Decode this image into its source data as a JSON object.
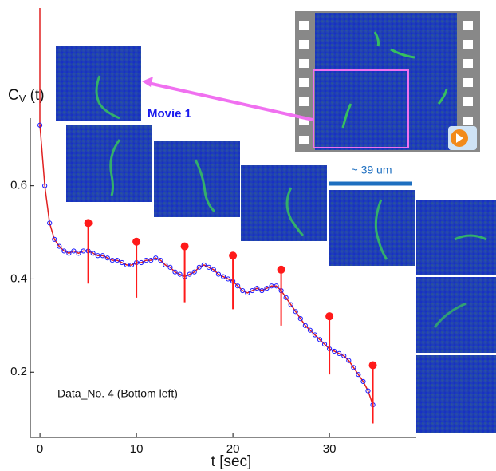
{
  "chart_data": {
    "type": "line",
    "xlabel": "t [sec]",
    "ylabel": {
      "main": "C",
      "sub": "V",
      "rest": " (t)"
    },
    "annotations": {
      "movie": "Movie 1",
      "scale": "~ 39 um",
      "note": "Data_No. 4 (Bottom left)"
    },
    "xlim": [
      -1,
      39
    ],
    "ylim": [
      0.06,
      0.745
    ],
    "xticks": [
      0,
      10,
      20,
      30
    ],
    "yticks": [
      0.2,
      0.4,
      0.6
    ],
    "x": [
      0,
      0.5,
      1,
      1.5,
      2,
      2.5,
      3,
      3.5,
      4,
      4.5,
      5,
      5.5,
      6,
      6.5,
      7,
      7.5,
      8,
      8.5,
      9,
      9.5,
      10,
      10.5,
      11,
      11.5,
      12,
      12.5,
      13,
      13.5,
      14,
      14.5,
      15,
      15.5,
      16,
      16.5,
      17,
      17.5,
      18,
      18.5,
      19,
      19.5,
      20,
      20.5,
      21,
      21.5,
      22,
      22.5,
      23,
      23.5,
      24,
      24.5,
      25,
      25.5,
      26,
      26.5,
      27,
      27.5,
      28,
      28.5,
      29,
      29.5,
      30,
      30.5,
      31,
      31.5,
      32,
      32.5,
      33,
      33.5,
      34,
      34.5
    ],
    "series": [
      {
        "color": "#1a1aff",
        "fit_color": "#e02020",
        "values": [
          0.73,
          0.6,
          0.52,
          0.485,
          0.47,
          0.46,
          0.455,
          0.46,
          0.455,
          0.46,
          0.46,
          0.455,
          0.45,
          0.45,
          0.445,
          0.44,
          0.44,
          0.435,
          0.43,
          0.43,
          0.435,
          0.435,
          0.44,
          0.44,
          0.445,
          0.44,
          0.43,
          0.425,
          0.415,
          0.41,
          0.405,
          0.41,
          0.415,
          0.425,
          0.43,
          0.425,
          0.42,
          0.41,
          0.405,
          0.4,
          0.395,
          0.385,
          0.375,
          0.37,
          0.375,
          0.38,
          0.375,
          0.38,
          0.385,
          0.385,
          0.375,
          0.36,
          0.345,
          0.33,
          0.315,
          0.3,
          0.29,
          0.28,
          0.27,
          0.26,
          0.25,
          0.245,
          0.24,
          0.235,
          0.225,
          0.21,
          0.195,
          0.18,
          0.16,
          0.13
        ]
      }
    ],
    "markers": {
      "color": "#ff1a1a",
      "x": [
        5,
        10,
        15,
        20,
        25,
        30,
        34.5
      ],
      "values": [
        0.52,
        0.48,
        0.47,
        0.45,
        0.42,
        0.32,
        0.215
      ],
      "lows": [
        0.39,
        0.36,
        0.35,
        0.335,
        0.3,
        0.195,
        0.09
      ]
    }
  }
}
